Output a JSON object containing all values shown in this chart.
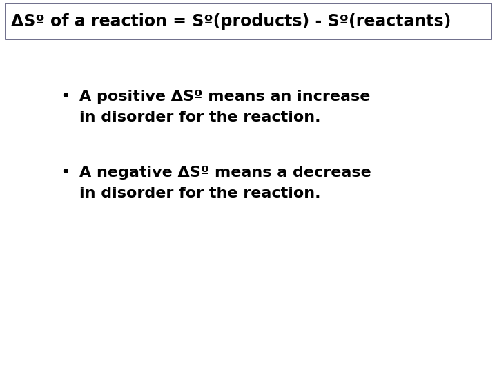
{
  "bg_color": "#ffffff",
  "border_color": "#555577",
  "title_text": "ΔSº of a reaction = Sº(products) - Sº(reactants)",
  "title_fontsize": 17,
  "bullet1_line1": "A positive ΔSº means an increase",
  "bullet1_line2": "in disorder for the reaction.",
  "bullet2_line1": "A negative ΔSº means a decrease",
  "bullet2_line2": "in disorder for the reaction.",
  "bullet_fontsize": 16,
  "text_color": "#000000"
}
